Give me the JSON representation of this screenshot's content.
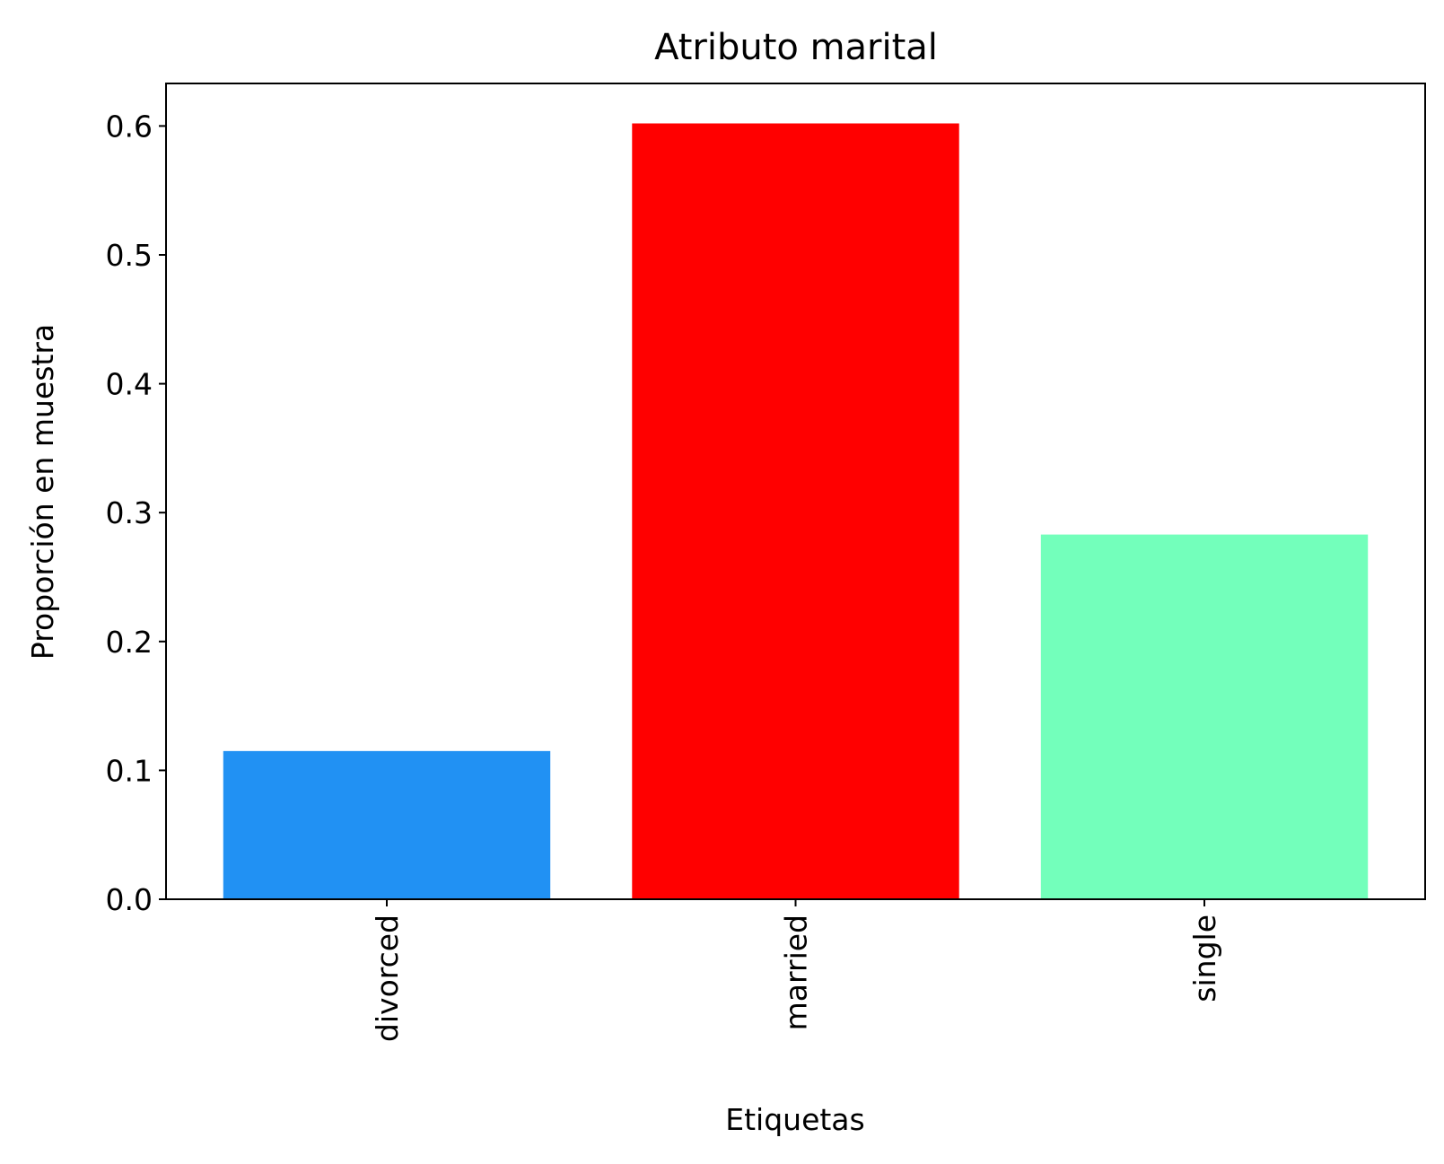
{
  "chart_data": {
    "type": "bar",
    "title": "Atributo marital",
    "xlabel": "Etiquetas",
    "ylabel": "Proporción en muestra",
    "categories": [
      "divorced",
      "married",
      "single"
    ],
    "values": [
      0.115,
      0.602,
      0.283
    ],
    "colors": [
      "#2191f3",
      "#ff0000",
      "#73ffbb"
    ],
    "ylim": [
      0,
      0.633
    ],
    "yticks": [
      0.0,
      0.1,
      0.2,
      0.3,
      0.4,
      0.5,
      0.6
    ],
    "ytick_labels": [
      "0.0",
      "0.1",
      "0.2",
      "0.3",
      "0.4",
      "0.5",
      "0.6"
    ],
    "xtick_rotation": "vertical",
    "grid": false,
    "legend": "none"
  }
}
